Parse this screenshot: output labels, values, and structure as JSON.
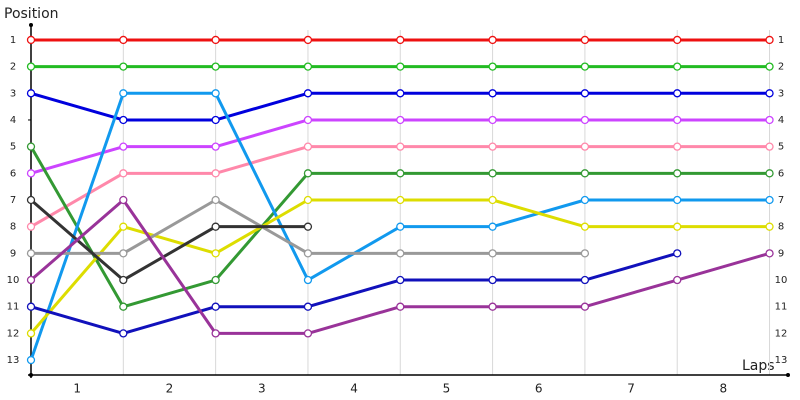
{
  "chart_data": {
    "type": "line",
    "y_axis_label": "Position",
    "x_axis_label": "Laps",
    "x": [
      0,
      1,
      2,
      3,
      4,
      5,
      6,
      7,
      8
    ],
    "xlim": [
      0,
      8.2
    ],
    "xticks": [
      {
        "value": 0.5,
        "label": "1"
      },
      {
        "value": 1.5,
        "label": "2"
      },
      {
        "value": 2.5,
        "label": "3"
      },
      {
        "value": 3.5,
        "label": "4"
      },
      {
        "value": 4.5,
        "label": "5"
      },
      {
        "value": 5.5,
        "label": "6"
      },
      {
        "value": 6.5,
        "label": "7"
      },
      {
        "value": 7.5,
        "label": "8"
      }
    ],
    "ylim": [
      0.44,
      13.56
    ],
    "y_inverted": true,
    "yticks": [
      1,
      2,
      3,
      4,
      5,
      6,
      7,
      8,
      9,
      10,
      11,
      12,
      13
    ],
    "grid": true,
    "series": [
      {
        "color": "#ee1111",
        "values": [
          1,
          1,
          1,
          1,
          1,
          1,
          1,
          1,
          1
        ]
      },
      {
        "color": "#22bb22",
        "values": [
          2,
          2,
          2,
          2,
          2,
          2,
          2,
          2,
          2
        ]
      },
      {
        "color": "#0000dd",
        "values": [
          3,
          4,
          4,
          3,
          3,
          3,
          3,
          3,
          3
        ]
      },
      {
        "color": "#cc44ff",
        "values": [
          6,
          5,
          5,
          4,
          4,
          4,
          4,
          4,
          4
        ]
      },
      {
        "color": "#ff88aa",
        "values": [
          8,
          6,
          6,
          5,
          5,
          5,
          5,
          5,
          5
        ]
      },
      {
        "color": "#339933",
        "values": [
          5,
          11,
          10,
          6,
          6,
          6,
          6,
          6,
          6
        ]
      },
      {
        "color": "#1199ee",
        "values": [
          13,
          3,
          3,
          10,
          8,
          8,
          7,
          7,
          7
        ]
      },
      {
        "color": "#dddd00",
        "values": [
          12,
          8,
          9,
          7,
          7,
          7,
          8,
          8,
          8
        ]
      },
      {
        "color": "#999999",
        "values": [
          9,
          9,
          7,
          9,
          9,
          9,
          9,
          null,
          null
        ]
      },
      {
        "color": "#333333",
        "values": [
          7,
          10,
          8,
          8,
          null,
          null,
          null,
          null,
          null
        ]
      },
      {
        "color": "#1111bb",
        "values": [
          11,
          12,
          11,
          11,
          10,
          10,
          10,
          9,
          null
        ]
      },
      {
        "color": "#993399",
        "values": [
          10,
          7,
          12,
          12,
          11,
          11,
          11,
          10,
          9
        ]
      }
    ]
  }
}
